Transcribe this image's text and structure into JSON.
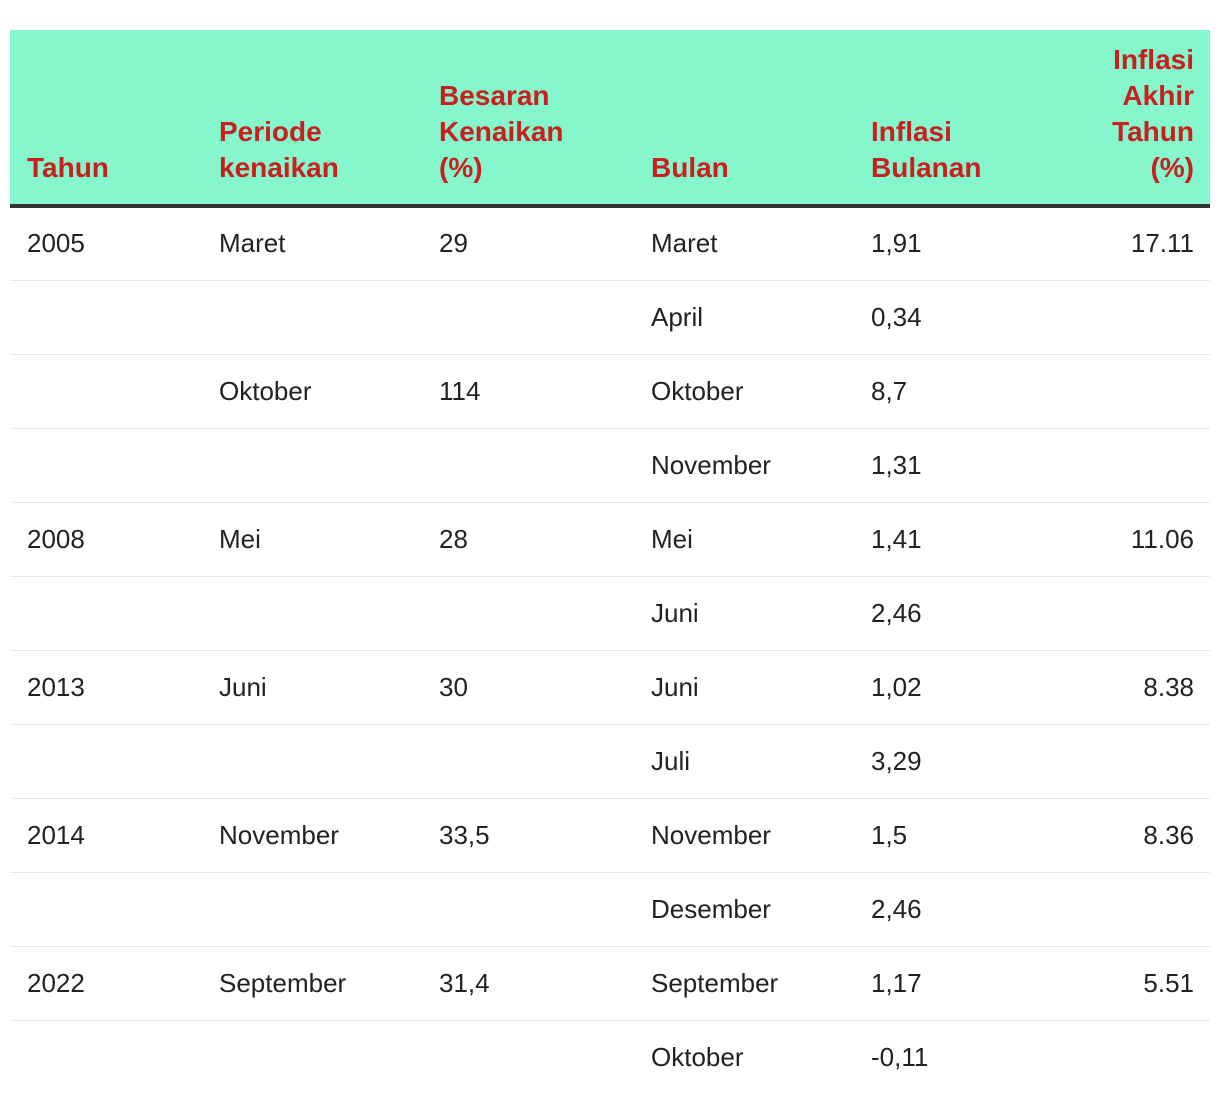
{
  "headers": [
    [
      "Tahun"
    ],
    [
      "Periode",
      "kenaikan"
    ],
    [
      "Besaran",
      "Kenaikan",
      "(%)"
    ],
    [
      "Bulan"
    ],
    [
      "Inflasi",
      "Bulanan"
    ],
    [
      "Inflasi",
      "Akhir",
      "Tahun",
      "(%)"
    ]
  ],
  "rows": [
    [
      "2005",
      "Maret",
      "29",
      "Maret",
      "1,91",
      "17.11"
    ],
    [
      "",
      "",
      "",
      "April",
      "0,34",
      ""
    ],
    [
      "",
      "Oktober",
      "114",
      "Oktober",
      "8,7",
      ""
    ],
    [
      "",
      "",
      "",
      "November",
      "1,31",
      ""
    ],
    [
      "2008",
      "Mei",
      "28",
      "Mei",
      "1,41",
      "11.06"
    ],
    [
      "",
      "",
      "",
      "Juni",
      "2,46",
      ""
    ],
    [
      "2013",
      "Juni",
      "30",
      "Juni",
      "1,02",
      "8.38"
    ],
    [
      "",
      "",
      "",
      "Juli",
      "3,29",
      ""
    ],
    [
      "2014",
      "November",
      "33,5",
      "November",
      "1,5",
      "8.36"
    ],
    [
      "",
      "",
      "",
      "Desember",
      "2,46",
      ""
    ],
    [
      "2022",
      "September",
      "31,4",
      "September",
      "1,17",
      "5.51"
    ],
    [
      "",
      "",
      "",
      "Oktober",
      "-0,11",
      ""
    ]
  ],
  "colors": {
    "header_background": "#86f6cd",
    "header_text": "#c8201e",
    "header_rule": "#333333",
    "row_divider": "#e6e6e6",
    "body_text": "#222222"
  }
}
